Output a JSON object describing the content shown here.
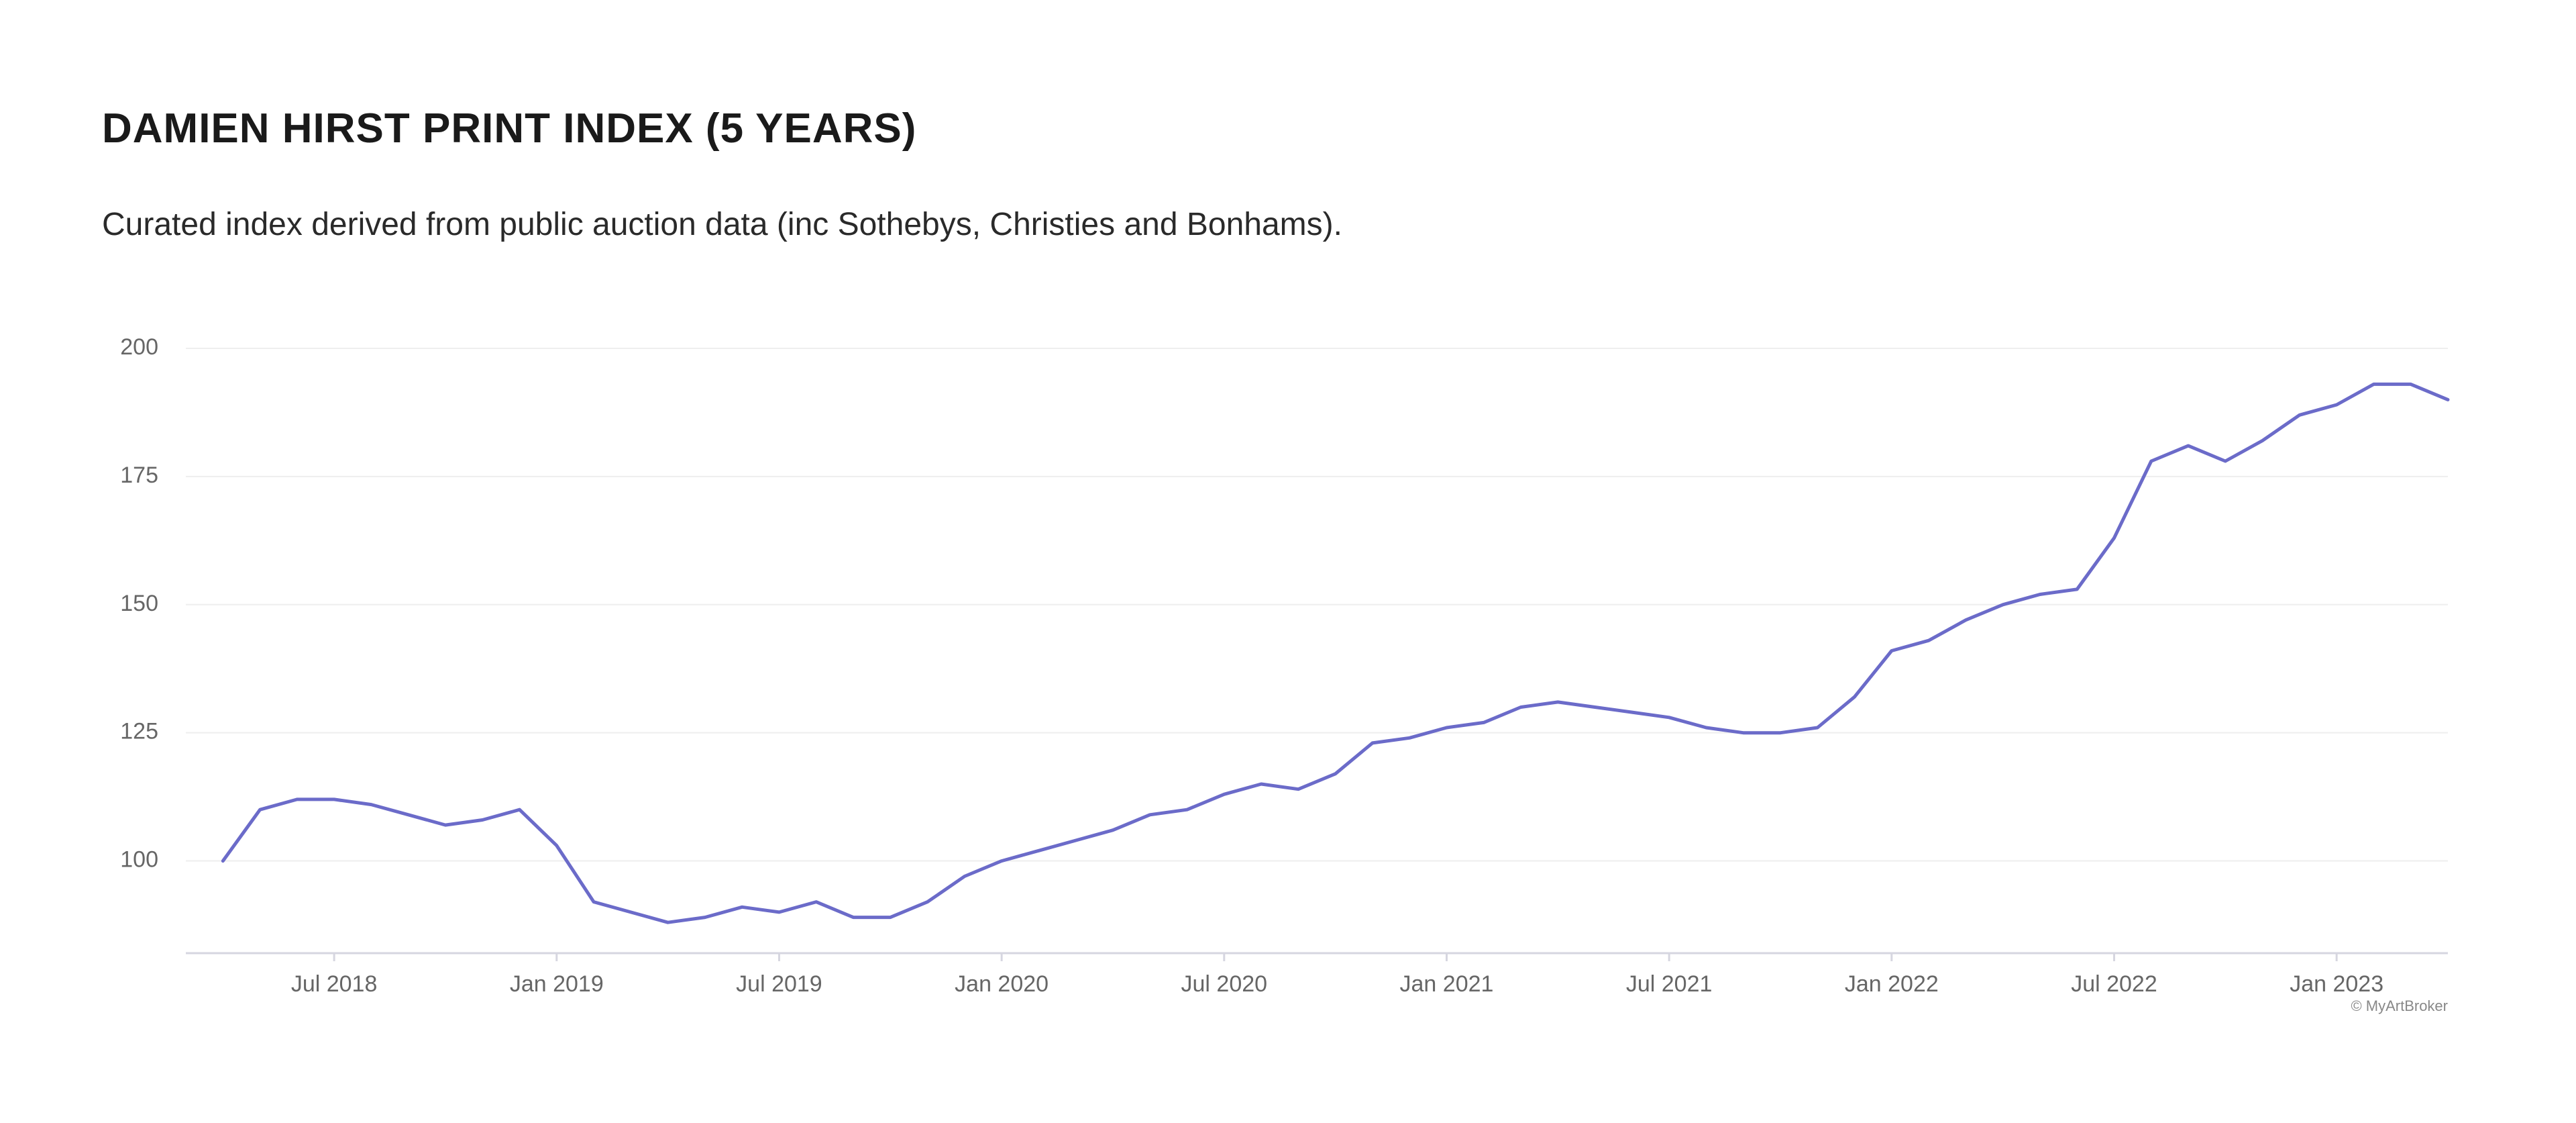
{
  "chart_data": {
    "type": "line",
    "title": "DAMIEN HIRST PRINT INDEX (5 YEARS)",
    "subtitle": "Curated index derived from public auction data (inc Sothebys, Christies and Bonhams).",
    "credit": "© MyArtBroker",
    "x": [
      "2018-04",
      "2018-05",
      "2018-06",
      "2018-07",
      "2018-08",
      "2018-09",
      "2018-10",
      "2018-11",
      "2018-12",
      "2019-01",
      "2019-02",
      "2019-03",
      "2019-04",
      "2019-05",
      "2019-06",
      "2019-07",
      "2019-08",
      "2019-09",
      "2019-10",
      "2019-11",
      "2019-12",
      "2020-01",
      "2020-02",
      "2020-03",
      "2020-04",
      "2020-05",
      "2020-06",
      "2020-07",
      "2020-08",
      "2020-09",
      "2020-10",
      "2020-11",
      "2020-12",
      "2021-01",
      "2021-02",
      "2021-03",
      "2021-04",
      "2021-05",
      "2021-06",
      "2021-07",
      "2021-08",
      "2021-09",
      "2021-10",
      "2021-11",
      "2021-12",
      "2022-01",
      "2022-02",
      "2022-03",
      "2022-04",
      "2022-05",
      "2022-06",
      "2022-07",
      "2022-08",
      "2022-09",
      "2022-10",
      "2022-11",
      "2022-12",
      "2023-01",
      "2023-02",
      "2023-03",
      "2023-04"
    ],
    "series": [
      {
        "name": "Damien Hirst Print Index",
        "color": "#6b6bc9",
        "values": [
          100,
          110,
          112,
          112,
          111,
          109,
          107,
          108,
          110,
          103,
          92,
          90,
          88,
          89,
          91,
          90,
          92,
          89,
          89,
          92,
          97,
          100,
          102,
          104,
          106,
          109,
          110,
          113,
          115,
          114,
          117,
          123,
          124,
          126,
          127,
          130,
          131,
          130,
          129,
          128,
          126,
          125,
          125,
          126,
          132,
          141,
          143,
          147,
          150,
          152,
          153,
          163,
          178,
          181,
          178,
          182,
          187,
          189,
          193,
          193,
          190
        ]
      }
    ],
    "xlim": [
      "2018-03",
      "2023-04"
    ],
    "xticks": [
      {
        "value": "2018-07",
        "label": "Jul 2018"
      },
      {
        "value": "2019-01",
        "label": "Jan 2019"
      },
      {
        "value": "2019-07",
        "label": "Jul 2019"
      },
      {
        "value": "2020-01",
        "label": "Jan 2020"
      },
      {
        "value": "2020-07",
        "label": "Jul 2020"
      },
      {
        "value": "2021-01",
        "label": "Jan 2021"
      },
      {
        "value": "2021-07",
        "label": "Jul 2021"
      },
      {
        "value": "2022-01",
        "label": "Jan 2022"
      },
      {
        "value": "2022-07",
        "label": "Jul 2022"
      },
      {
        "value": "2023-01",
        "label": "Jan 2023"
      }
    ],
    "ylim": [
      82,
      200
    ],
    "yticks": [
      100,
      125,
      150,
      175,
      200
    ],
    "grid": true
  }
}
